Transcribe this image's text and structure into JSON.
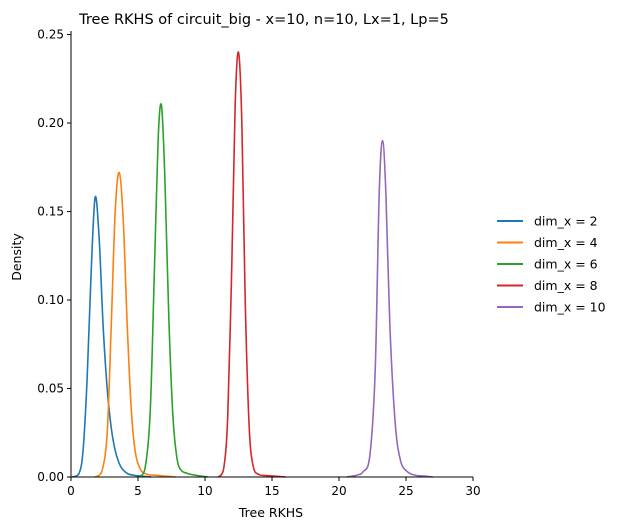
{
  "chart_data": {
    "type": "line",
    "title": "Tree RKHS of circuit_big - x=10, n=10, Lx=1, Lp=5",
    "xlabel": "Tree RKHS",
    "ylabel": "Density",
    "xlim": [
      0,
      30
    ],
    "ylim": [
      0,
      0.252
    ],
    "xticks": [
      0,
      5,
      10,
      15,
      20,
      25,
      30
    ],
    "xtick_labels": [
      "0",
      "5",
      "10",
      "15",
      "20",
      "25",
      "30"
    ],
    "yticks": [
      0.0,
      0.05,
      0.1,
      0.15,
      0.2,
      0.25
    ],
    "ytick_labels": [
      "0.00",
      "0.05",
      "0.10",
      "0.15",
      "0.20",
      "0.25"
    ],
    "grid": false,
    "legend_position": "right",
    "series": [
      {
        "name": "dim_x = 2",
        "color": "#1f77b4",
        "x": [
          0.1,
          0.6,
          0.9,
          1.2,
          1.5,
          1.8,
          2.1,
          2.4,
          2.7,
          3.0,
          3.3,
          3.7,
          4.2,
          4.7,
          5.3,
          6.0
        ],
        "y": [
          0.0,
          0.002,
          0.015,
          0.055,
          0.115,
          0.158,
          0.135,
          0.085,
          0.05,
          0.028,
          0.015,
          0.006,
          0.002,
          0.001,
          0.0005,
          0.0
        ]
      },
      {
        "name": "dim_x = 4",
        "color": "#ff7f0e",
        "x": [
          1.8,
          2.3,
          2.7,
          3.0,
          3.3,
          3.6,
          3.9,
          4.2,
          4.5,
          4.8,
          5.2,
          5.7,
          6.3,
          7.0,
          7.8
        ],
        "y": [
          0.0,
          0.003,
          0.025,
          0.085,
          0.15,
          0.172,
          0.145,
          0.085,
          0.038,
          0.014,
          0.004,
          0.0015,
          0.001,
          0.0005,
          0.0
        ]
      },
      {
        "name": "dim_x = 6",
        "color": "#2ca02c",
        "x": [
          5.0,
          5.5,
          5.9,
          6.2,
          6.5,
          6.75,
          7.0,
          7.3,
          7.6,
          7.9,
          8.2,
          8.7,
          9.3,
          10.2
        ],
        "y": [
          0.0,
          0.004,
          0.035,
          0.11,
          0.19,
          0.21,
          0.17,
          0.09,
          0.035,
          0.011,
          0.004,
          0.002,
          0.001,
          0.0
        ]
      },
      {
        "name": "dim_x = 8",
        "color": "#d62728",
        "x": [
          11.0,
          11.4,
          11.7,
          12.0,
          12.25,
          12.5,
          12.75,
          13.0,
          13.3,
          13.6,
          14.0,
          14.6,
          15.3,
          16.0
        ],
        "y": [
          0.0,
          0.005,
          0.035,
          0.12,
          0.21,
          0.24,
          0.2,
          0.1,
          0.028,
          0.006,
          0.0015,
          0.0008,
          0.0004,
          0.0
        ]
      },
      {
        "name": "dim_x = 10",
        "color": "#9467bd",
        "x": [
          20.6,
          21.3,
          21.8,
          22.3,
          22.7,
          23.0,
          23.25,
          23.5,
          23.8,
          24.2,
          24.6,
          25.1,
          25.7,
          26.4,
          27.0
        ],
        "y": [
          0.0,
          0.001,
          0.003,
          0.012,
          0.06,
          0.16,
          0.19,
          0.16,
          0.085,
          0.03,
          0.009,
          0.003,
          0.001,
          0.0005,
          0.0
        ]
      }
    ]
  }
}
